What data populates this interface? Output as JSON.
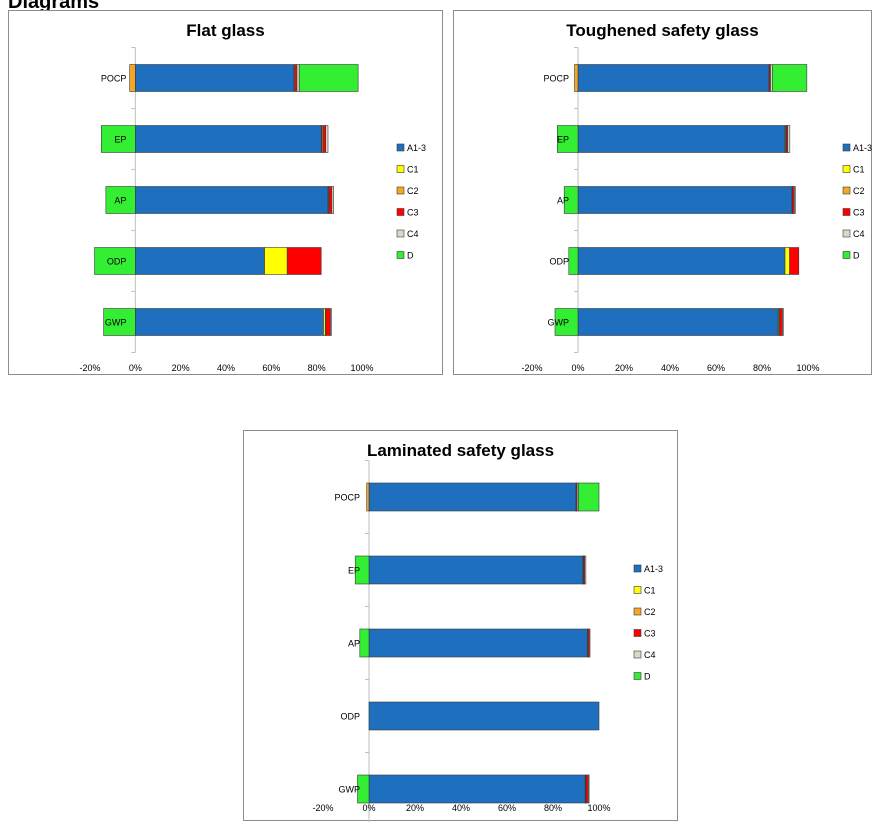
{
  "heading": "Diagrams",
  "colors": {
    "A1-3": "#1f6fbf",
    "C1": "#ffff00",
    "C2": "#f5a623",
    "C3": "#ff0000",
    "C4": "#d9d9c8",
    "D": "#33ee33"
  },
  "chart_data": [
    {
      "type": "bar",
      "stacked": true,
      "orientation": "horizontal",
      "title": "Flat glass",
      "categories": [
        "POCP",
        "EP",
        "AP",
        "ODP",
        "GWP"
      ],
      "xlim": [
        -20,
        100
      ],
      "xticks": [
        "-20%",
        "0%",
        "20%",
        "40%",
        "60%",
        "80%",
        "100%"
      ],
      "legend": {
        "position": "right",
        "entries": [
          "A1-3",
          "C1",
          "C2",
          "C3",
          "C4",
          "D"
        ]
      },
      "series": [
        {
          "name": "A1-3",
          "values": [
            70,
            82,
            85,
            57,
            83
          ]
        },
        {
          "name": "C1",
          "values": [
            0.3,
            0.3,
            0.2,
            10,
            0.8
          ]
        },
        {
          "name": "C2",
          "values": [
            -2.5,
            0.5,
            0.3,
            0,
            0.3
          ]
        },
        {
          "name": "C3",
          "values": [
            1,
            1.2,
            1.2,
            15,
            2
          ]
        },
        {
          "name": "C4",
          "values": [
            1,
            1,
            0.8,
            0,
            0.4
          ]
        },
        {
          "name": "D",
          "values": [
            26,
            -15,
            -13,
            -18,
            -14
          ]
        }
      ]
    },
    {
      "type": "bar",
      "stacked": true,
      "orientation": "horizontal",
      "title": "Toughened safety glass",
      "categories": [
        "POCP",
        "EP",
        "AP",
        "ODP",
        "GWP"
      ],
      "xlim": [
        -20,
        100
      ],
      "xticks": [
        "-20%",
        "0%",
        "20%",
        "40%",
        "60%",
        "80%",
        "100%"
      ],
      "legend": {
        "position": "right",
        "entries": [
          "A1-3",
          "C1",
          "C2",
          "C3",
          "C4",
          "D"
        ]
      },
      "series": [
        {
          "name": "A1-3",
          "values": [
            83,
            90,
            93,
            90,
            87
          ]
        },
        {
          "name": "C1",
          "values": [
            0.2,
            0.3,
            0.1,
            2,
            0.4
          ]
        },
        {
          "name": "C2",
          "values": [
            -1.5,
            0.3,
            0.2,
            0,
            0.3
          ]
        },
        {
          "name": "C3",
          "values": [
            0.5,
            0.6,
            0.8,
            4,
            1.2
          ]
        },
        {
          "name": "C4",
          "values": [
            0.8,
            0.9,
            0.4,
            0,
            0.4
          ]
        },
        {
          "name": "D",
          "values": [
            15,
            -9,
            -6,
            -4,
            -10
          ]
        }
      ]
    },
    {
      "type": "bar",
      "stacked": true,
      "orientation": "horizontal",
      "title": "Laminated safety glass",
      "categories": [
        "POCP",
        "EP",
        "AP",
        "ODP",
        "GWP"
      ],
      "xlim": [
        -20,
        100
      ],
      "xticks": [
        "-20%",
        "0%",
        "20%",
        "40%",
        "60%",
        "80%",
        "100%"
      ],
      "legend": {
        "position": "right",
        "entries": [
          "A1-3",
          "C1",
          "C2",
          "C3",
          "C4",
          "D"
        ]
      },
      "series": [
        {
          "name": "A1-3",
          "values": [
            90,
            93,
            95,
            100,
            94
          ]
        },
        {
          "name": "C1",
          "values": [
            0.1,
            0.1,
            0.1,
            0,
            0.2
          ]
        },
        {
          "name": "C2",
          "values": [
            -1,
            0.2,
            0.1,
            0,
            0.2
          ]
        },
        {
          "name": "C3",
          "values": [
            0.4,
            0.5,
            0.6,
            0,
            1
          ]
        },
        {
          "name": "C4",
          "values": [
            0.5,
            0.5,
            0.3,
            0,
            0.3
          ]
        },
        {
          "name": "D",
          "values": [
            9,
            -6,
            -4,
            0,
            -5
          ]
        }
      ]
    }
  ]
}
